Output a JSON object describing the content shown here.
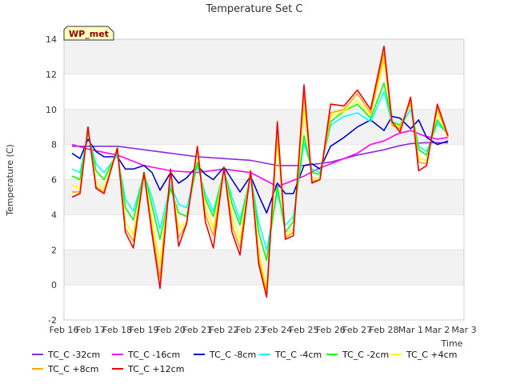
{
  "chart_data": {
    "type": "line",
    "title": "Temperature Set C",
    "xlabel": "Time",
    "ylabel": "Temperature (C)",
    "ylim": [
      -2,
      14
    ],
    "yticks": [
      -2,
      0,
      2,
      4,
      6,
      8,
      10,
      12,
      14
    ],
    "xlim": [
      0,
      15
    ],
    "xticks": [
      "Feb 16",
      "Feb 17",
      "Feb 18",
      "Feb 19",
      "Feb 20",
      "Feb 21",
      "Feb 22",
      "Feb 23",
      "Feb 24",
      "Feb 25",
      "Feb 26",
      "Feb 27",
      "Feb 28",
      "Mar 1",
      "Mar 2",
      "Mar 3"
    ],
    "badge": "WP_met",
    "grid": "horizontal bands",
    "legend_position": "bottom",
    "series": [
      {
        "name": "TC_C -32cm",
        "color": "#8a2be2",
        "x": [
          0.3,
          1,
          2,
          3,
          4,
          5,
          6,
          7,
          8,
          9,
          10,
          11,
          12,
          12.5,
          13,
          13.5,
          14,
          14.4
        ],
        "y": [
          7.9,
          7.9,
          7.9,
          7.7,
          7.5,
          7.3,
          7.2,
          7.1,
          6.8,
          6.8,
          7.0,
          7.4,
          7.7,
          7.9,
          8.05,
          8.1,
          8.1,
          8.1
        ]
      },
      {
        "name": "TC_C -16cm",
        "color": "#ff00ff",
        "x": [
          0.3,
          1,
          2,
          3,
          4,
          5,
          6,
          7,
          7.5,
          8,
          8.5,
          9,
          9.5,
          10,
          11,
          11.5,
          12,
          12.5,
          13,
          13.5,
          14,
          14.4
        ],
        "y": [
          8.0,
          7.7,
          7.4,
          6.8,
          6.5,
          6.4,
          6.6,
          6.4,
          6.0,
          5.6,
          5.9,
          6.2,
          6.6,
          6.9,
          7.5,
          8.0,
          8.2,
          8.6,
          8.8,
          8.5,
          8.3,
          8.4
        ]
      },
      {
        "name": "TC_C -8cm",
        "color": "#0000cd",
        "x": [
          0.3,
          0.6,
          0.9,
          1.2,
          1.5,
          2,
          2.3,
          2.6,
          3,
          3.3,
          3.6,
          4,
          4.3,
          4.6,
          5,
          5.3,
          5.6,
          6,
          6.3,
          6.6,
          7,
          7.3,
          7.6,
          8,
          8.3,
          8.6,
          9,
          9.3,
          9.6,
          10,
          10.5,
          11,
          11.5,
          12,
          12.3,
          12.6,
          13,
          13.3,
          13.6,
          14,
          14.4
        ],
        "y": [
          7.5,
          7.2,
          8.3,
          7.6,
          7.3,
          7.3,
          6.6,
          6.6,
          6.8,
          6.4,
          5.4,
          6.4,
          5.8,
          6.1,
          6.8,
          6.3,
          6.0,
          6.7,
          6.0,
          5.3,
          6.2,
          5.1,
          4.1,
          5.8,
          5.2,
          5.2,
          6.8,
          6.9,
          6.6,
          7.9,
          8.4,
          9.0,
          9.4,
          8.8,
          9.6,
          9.5,
          8.9,
          9.4,
          8.4,
          8.0,
          8.2
        ]
      },
      {
        "name": "TC_C -4cm",
        "color": "#00ffff",
        "x": [
          0.3,
          0.6,
          0.9,
          1.2,
          1.5,
          2,
          2.3,
          2.6,
          3,
          3.3,
          3.6,
          4,
          4.3,
          4.6,
          5,
          5.3,
          5.6,
          6,
          6.3,
          6.6,
          7,
          7.3,
          7.6,
          8,
          8.3,
          8.6,
          9,
          9.3,
          9.6,
          10,
          10.5,
          11,
          11.5,
          12,
          12.3,
          12.6,
          13,
          13.3,
          13.6,
          14,
          14.4
        ],
        "y": [
          6.6,
          6.4,
          8.6,
          6.9,
          6.4,
          7.4,
          4.9,
          4.2,
          6.3,
          5.0,
          3.2,
          5.7,
          4.6,
          4.4,
          6.8,
          5.2,
          4.2,
          6.5,
          5.0,
          3.7,
          6.2,
          3.6,
          2.0,
          5.3,
          3.4,
          3.9,
          8.1,
          6.6,
          6.4,
          9.1,
          9.6,
          9.8,
          9.3,
          11.0,
          9.2,
          9.0,
          10.0,
          7.9,
          7.6,
          9.2,
          8.6
        ]
      },
      {
        "name": "TC_C -2cm",
        "color": "#00ff00",
        "x": [
          0.3,
          0.6,
          0.9,
          1.2,
          1.5,
          2,
          2.3,
          2.6,
          3,
          3.3,
          3.6,
          4,
          4.3,
          4.6,
          5,
          5.3,
          5.6,
          6,
          6.3,
          6.6,
          7,
          7.3,
          7.6,
          8,
          8.3,
          8.6,
          9,
          9.3,
          9.6,
          10,
          10.5,
          11,
          11.5,
          12,
          12.3,
          12.6,
          13,
          13.3,
          13.6,
          14,
          14.4
        ],
        "y": [
          6.2,
          6.0,
          8.8,
          6.5,
          6.0,
          7.6,
          4.4,
          3.7,
          6.4,
          4.5,
          2.6,
          5.5,
          4.1,
          3.9,
          7.0,
          4.9,
          3.9,
          6.6,
          4.6,
          3.4,
          6.3,
          3.0,
          1.4,
          5.6,
          3.0,
          3.6,
          8.5,
          6.4,
          6.3,
          9.3,
          9.9,
          10.3,
          9.5,
          11.5,
          9.3,
          9.1,
          10.3,
          7.7,
          7.4,
          9.4,
          8.5
        ]
      },
      {
        "name": "TC_C +4cm",
        "color": "#ffff00",
        "x": [
          0.3,
          0.6,
          0.9,
          1.2,
          1.5,
          2,
          2.3,
          2.6,
          3,
          3.3,
          3.6,
          4,
          4.3,
          4.6,
          5,
          5.3,
          5.6,
          6,
          6.3,
          6.6,
          7,
          7.3,
          7.6,
          8,
          8.3,
          8.6,
          9,
          9.3,
          9.6,
          10,
          10.5,
          11,
          11.5,
          12,
          12.3,
          12.6,
          13,
          13.3,
          13.6,
          14,
          14.4
        ],
        "y": [
          5.7,
          5.5,
          8.9,
          5.9,
          5.5,
          7.8,
          3.6,
          2.9,
          6.4,
          3.7,
          1.2,
          6.3,
          3.2,
          3.6,
          7.6,
          4.4,
          3.2,
          6.7,
          3.9,
          2.6,
          6.5,
          2.0,
          -0.2,
          8.2,
          2.8,
          3.2,
          10.0,
          6.1,
          6.1,
          9.6,
          9.9,
          10.5,
          9.7,
          12.8,
          9.2,
          9.0,
          10.4,
          7.2,
          7.1,
          9.9,
          8.4
        ]
      },
      {
        "name": "TC_C +8cm",
        "color": "#ffa500",
        "x": [
          0.3,
          0.6,
          0.9,
          1.2,
          1.5,
          2,
          2.3,
          2.6,
          3,
          3.3,
          3.6,
          4,
          4.3,
          4.6,
          5,
          5.3,
          5.6,
          6,
          6.3,
          6.6,
          7,
          7.3,
          7.6,
          8,
          8.3,
          8.6,
          9,
          9.3,
          9.6,
          10,
          10.5,
          11,
          11.5,
          12,
          12.3,
          12.6,
          13,
          13.3,
          13.6,
          14,
          14.4
        ],
        "y": [
          5.3,
          5.3,
          9.0,
          5.6,
          5.3,
          7.8,
          3.2,
          2.5,
          6.4,
          3.2,
          0.4,
          6.5,
          2.7,
          3.5,
          7.8,
          4.0,
          2.8,
          6.7,
          3.4,
          2.1,
          6.5,
          1.5,
          -0.5,
          8.8,
          2.7,
          3.0,
          10.8,
          5.9,
          6.0,
          9.8,
          10.0,
          10.9,
          9.8,
          13.2,
          9.1,
          8.9,
          10.5,
          7.0,
          6.9,
          10.1,
          8.4
        ]
      },
      {
        "name": "TC_C +12cm",
        "color": "#ee0000",
        "x": [
          0.3,
          0.6,
          0.9,
          1.2,
          1.5,
          2,
          2.3,
          2.6,
          3,
          3.3,
          3.6,
          4,
          4.3,
          4.6,
          5,
          5.3,
          5.6,
          6,
          6.3,
          6.6,
          7,
          7.3,
          7.6,
          8,
          8.3,
          8.6,
          9,
          9.3,
          9.6,
          10,
          10.5,
          11,
          11.5,
          12,
          12.3,
          12.6,
          13,
          13.3,
          13.6,
          14,
          14.4
        ],
        "y": [
          5.0,
          5.2,
          9.0,
          5.5,
          5.2,
          7.8,
          3.0,
          2.1,
          6.4,
          2.9,
          -0.2,
          6.6,
          2.2,
          3.5,
          7.9,
          3.6,
          2.1,
          6.7,
          3.0,
          1.7,
          6.5,
          1.2,
          -0.7,
          9.3,
          2.6,
          2.8,
          11.4,
          5.8,
          6.0,
          10.3,
          10.2,
          11.1,
          10.0,
          13.6,
          9.3,
          8.7,
          10.7,
          6.5,
          6.8,
          10.3,
          8.5
        ]
      }
    ]
  }
}
